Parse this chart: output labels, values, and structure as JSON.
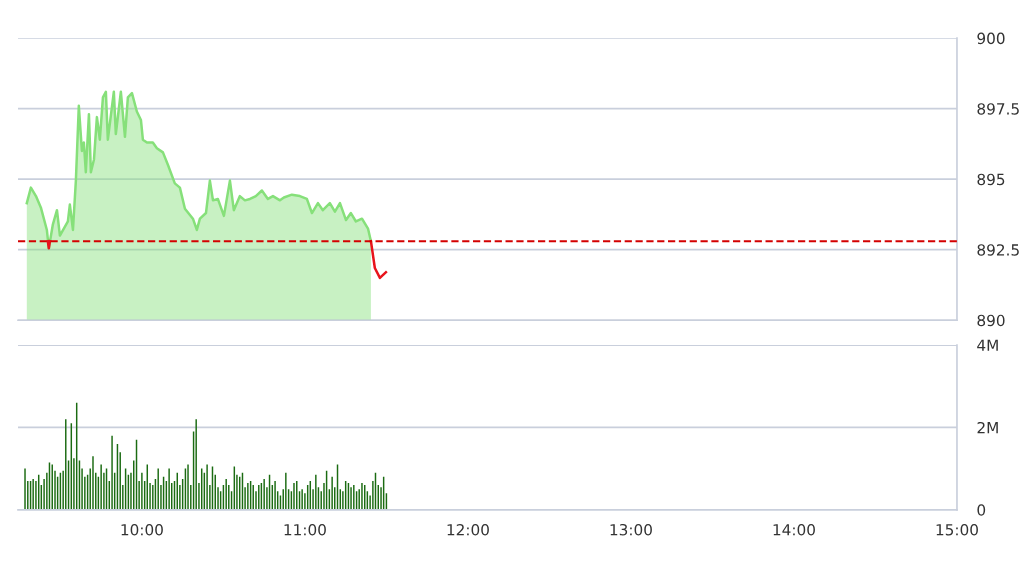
{
  "chart_data": [
    {
      "type": "line",
      "xlim": [
        9.24,
        15
      ],
      "ylim": [
        890,
        900
      ],
      "yticks": [
        890,
        892.5,
        895,
        897.5,
        900
      ],
      "grid": "y",
      "tick_labels": "y",
      "series": [
        {
          "type": "area",
          "color": "#86e07a",
          "x": [
            9.294,
            9.319,
            9.35,
            9.38,
            9.417,
            9.429,
            9.454,
            9.479,
            9.497,
            9.546,
            9.558,
            9.577,
            9.595,
            9.613,
            9.632,
            9.644,
            9.656,
            9.675,
            9.687,
            9.706,
            9.724,
            9.742,
            9.761,
            9.779,
            9.791,
            9.828,
            9.84,
            9.871,
            9.896,
            9.914,
            9.939,
            9.969,
            9.994,
            10.006,
            10.031,
            10.067,
            10.092,
            10.129,
            10.16,
            10.202,
            10.233,
            10.264,
            10.313,
            10.337,
            10.356,
            10.393,
            10.417,
            10.436,
            10.466,
            10.503,
            10.54,
            10.564,
            10.601,
            10.632,
            10.663,
            10.699,
            10.736,
            10.773,
            10.804,
            10.847,
            10.871,
            10.92,
            10.969,
            11.012,
            11.043,
            11.08,
            11.11,
            11.153,
            11.184,
            11.215,
            11.252,
            11.282,
            11.313,
            11.35,
            11.387,
            11.405
          ],
          "values": [
            894.15,
            894.7,
            894.4,
            894.0,
            893.2,
            892.55,
            893.4,
            893.9,
            893.0,
            893.5,
            894.1,
            893.2,
            894.95,
            897.6,
            896.0,
            896.3,
            895.25,
            897.3,
            895.25,
            895.7,
            897.2,
            896.4,
            897.9,
            898.1,
            896.4,
            898.1,
            896.6,
            898.1,
            896.5,
            897.9,
            898.05,
            897.4,
            897.1,
            896.4,
            896.3,
            896.3,
            896.1,
            895.95,
            895.5,
            894.85,
            894.7,
            893.95,
            893.6,
            893.2,
            893.6,
            893.8,
            894.95,
            894.25,
            894.3,
            893.7,
            894.95,
            893.9,
            894.4,
            894.25,
            894.3,
            894.4,
            894.6,
            894.3,
            894.4,
            894.25,
            894.35,
            894.45,
            894.4,
            894.3,
            893.8,
            894.15,
            893.9,
            894.15,
            893.85,
            894.15,
            893.55,
            893.8,
            893.5,
            893.6,
            893.25,
            892.8
          ]
        },
        {
          "type": "line",
          "color": "#e8141c",
          "x": [
            9.423,
            9.429,
            9.436,
            9.44,
            11.405,
            11.429,
            11.46,
            11.497
          ],
          "values": [
            892.8,
            892.55,
            892.8,
            null,
            892.8,
            891.85,
            891.5,
            891.7
          ]
        }
      ],
      "ref_lines": [
        {
          "axis": "y",
          "value": 892.8,
          "color": "#d40000",
          "line_style": "dashed"
        }
      ]
    },
    {
      "type": "bar",
      "xlim": [
        9.24,
        15
      ],
      "xticks": [
        {
          "value": 10,
          "label": "10:00"
        },
        {
          "value": 11,
          "label": "11:00"
        },
        {
          "value": 12,
          "label": "12:00"
        },
        {
          "value": 13,
          "label": "13:00"
        },
        {
          "value": 14,
          "label": "14:00"
        },
        {
          "value": 15,
          "label": "15:00"
        }
      ],
      "ylim": [
        0,
        4
      ],
      "yticks": [
        0,
        {
          "value": 2,
          "label": "2M"
        },
        {
          "value": 4,
          "label": "4M"
        }
      ],
      "grid": "y",
      "series": [
        {
          "color": "#1b6b12",
          "x": [
            9.283,
            9.3,
            9.317,
            9.333,
            9.35,
            9.367,
            9.383,
            9.4,
            9.417,
            9.433,
            9.45,
            9.467,
            9.483,
            9.5,
            9.517,
            9.533,
            9.55,
            9.567,
            9.583,
            9.6,
            9.617,
            9.633,
            9.65,
            9.667,
            9.683,
            9.7,
            9.717,
            9.733,
            9.75,
            9.767,
            9.783,
            9.8,
            9.817,
            9.833,
            9.85,
            9.867,
            9.883,
            9.9,
            9.917,
            9.933,
            9.95,
            9.967,
            9.983,
            10.0,
            10.017,
            10.033,
            10.05,
            10.067,
            10.083,
            10.1,
            10.117,
            10.133,
            10.15,
            10.167,
            10.183,
            10.2,
            10.217,
            10.233,
            10.25,
            10.267,
            10.283,
            10.3,
            10.317,
            10.333,
            10.35,
            10.367,
            10.383,
            10.4,
            10.417,
            10.433,
            10.45,
            10.467,
            10.483,
            10.5,
            10.517,
            10.533,
            10.55,
            10.567,
            10.583,
            10.6,
            10.617,
            10.633,
            10.65,
            10.667,
            10.683,
            10.7,
            10.717,
            10.733,
            10.75,
            10.767,
            10.783,
            10.8,
            10.817,
            10.833,
            10.85,
            10.867,
            10.883,
            10.9,
            10.917,
            10.933,
            10.95,
            10.967,
            10.983,
            11.0,
            11.017,
            11.033,
            11.05,
            11.067,
            11.083,
            11.1,
            11.117,
            11.133,
            11.15,
            11.167,
            11.183,
            11.2,
            11.217,
            11.233,
            11.25,
            11.267,
            11.283,
            11.3,
            11.317,
            11.333,
            11.35,
            11.367,
            11.383,
            11.4,
            11.417,
            11.433,
            11.45,
            11.467,
            11.483,
            11.5
          ],
          "values": [
            1.0,
            0.7,
            0.7,
            0.75,
            0.7,
            0.85,
            0.6,
            0.75,
            0.9,
            1.15,
            1.1,
            0.95,
            0.8,
            0.9,
            0.95,
            2.2,
            1.2,
            2.1,
            1.25,
            2.6,
            1.2,
            1.0,
            0.8,
            0.85,
            1.0,
            1.3,
            0.9,
            0.8,
            1.1,
            0.9,
            1.0,
            0.7,
            1.8,
            0.9,
            1.6,
            1.4,
            0.6,
            1.0,
            0.85,
            0.9,
            1.2,
            1.7,
            0.7,
            0.9,
            0.7,
            1.1,
            0.65,
            0.6,
            0.75,
            1.0,
            0.6,
            0.8,
            0.7,
            1.0,
            0.65,
            0.7,
            0.9,
            0.6,
            0.75,
            1.0,
            1.1,
            0.6,
            1.9,
            2.2,
            0.65,
            1.0,
            0.9,
            1.1,
            0.6,
            1.05,
            0.85,
            0.55,
            0.45,
            0.6,
            0.75,
            0.6,
            0.45,
            1.05,
            0.85,
            0.8,
            0.9,
            0.55,
            0.65,
            0.7,
            0.6,
            0.45,
            0.6,
            0.65,
            0.75,
            0.55,
            0.85,
            0.6,
            0.7,
            0.45,
            0.35,
            0.5,
            0.9,
            0.5,
            0.45,
            0.65,
            0.7,
            0.45,
            0.5,
            0.4,
            0.6,
            0.7,
            0.5,
            0.85,
            0.55,
            0.45,
            0.65,
            0.95,
            0.5,
            0.8,
            0.55,
            1.1,
            0.5,
            0.45,
            0.7,
            0.65,
            0.55,
            0.6,
            0.45,
            0.5,
            0.65,
            0.6,
            0.45,
            0.35,
            0.7,
            0.9,
            0.6,
            0.55,
            0.8,
            0.4
          ]
        }
      ]
    }
  ]
}
